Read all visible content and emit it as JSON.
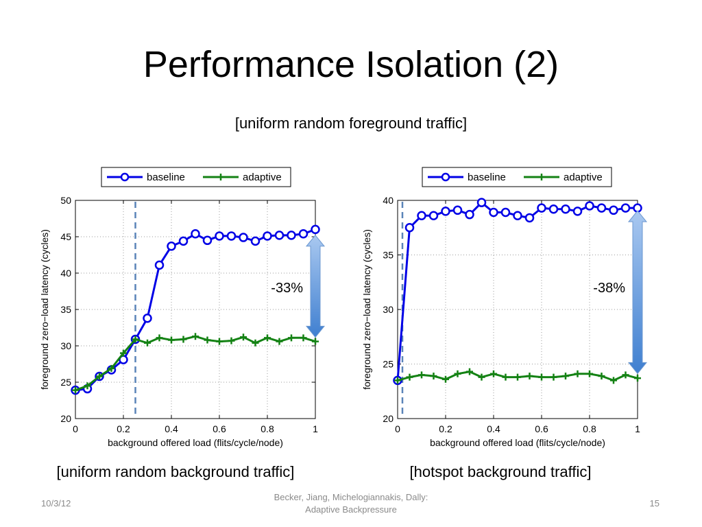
{
  "slide": {
    "title": "Performance Isolation (2)",
    "subtitle": "[uniform random foreground traffic]",
    "footer_date": "10/3/12",
    "footer_center_line1": "Becker, Jiang, Michelogiannakis, Dally:",
    "footer_center_line2": "Adaptive Backpressure",
    "page_number": "15"
  },
  "colors": {
    "baseline": "#0000e6",
    "adaptive": "#148214",
    "arrow": "#4a88d6",
    "dashed_marker": "#5a84b8",
    "grid": "#9a9a9a"
  },
  "chart_data": [
    {
      "type": "line",
      "caption": "[uniform random background traffic]",
      "xlabel": "background offered load (flits/cycle/node)",
      "ylabel": "foreground zero−load latency (cycles)",
      "xlim": [
        0,
        1
      ],
      "ylim": [
        20,
        50
      ],
      "xticks": [
        0,
        0.2,
        0.4,
        0.6,
        0.8,
        1
      ],
      "xtick_labels": [
        "0",
        "0.2",
        "0.4",
        "0.6",
        "0.8",
        "1"
      ],
      "yticks": [
        20,
        25,
        30,
        35,
        40,
        45,
        50
      ],
      "ytick_labels": [
        "20",
        "25",
        "30",
        "35",
        "40",
        "45",
        "50"
      ],
      "grid": true,
      "legend_position": "top-center",
      "x": [
        0,
        0.05,
        0.1,
        0.15,
        0.2,
        0.25,
        0.3,
        0.35,
        0.4,
        0.45,
        0.5,
        0.55,
        0.6,
        0.65,
        0.7,
        0.75,
        0.8,
        0.85,
        0.9,
        0.95,
        1.0
      ],
      "series": [
        {
          "name": "baseline",
          "marker": "circle",
          "values": [
            23.9,
            24.1,
            25.8,
            26.7,
            28.1,
            30.9,
            33.8,
            41.1,
            43.7,
            44.4,
            45.4,
            44.5,
            45.1,
            45.1,
            44.9,
            44.4,
            45.1,
            45.2,
            45.2,
            45.4,
            46.0
          ]
        },
        {
          "name": "adaptive",
          "marker": "plus",
          "values": [
            23.9,
            24.5,
            25.8,
            26.9,
            29.0,
            30.9,
            30.4,
            31.1,
            30.8,
            30.9,
            31.3,
            30.8,
            30.6,
            30.7,
            31.2,
            30.4,
            31.1,
            30.6,
            31.1,
            31.1,
            30.6
          ]
        }
      ],
      "vline_x": 0.25,
      "annotation": {
        "text": "-33%",
        "arrow_from": 45.4,
        "arrow_to": 31.0
      }
    },
    {
      "type": "line",
      "caption": "[hotspot background traffic]",
      "xlabel": "background offered load (flits/cycle/node)",
      "ylabel": "foreground zero−load latency (cycles)",
      "xlim": [
        0,
        1
      ],
      "ylim": [
        20,
        40
      ],
      "xticks": [
        0,
        0.2,
        0.4,
        0.6,
        0.8,
        1
      ],
      "xtick_labels": [
        "0",
        "0.2",
        "0.4",
        "0.6",
        "0.8",
        "1"
      ],
      "yticks": [
        20,
        25,
        30,
        35,
        40
      ],
      "ytick_labels": [
        "20",
        "25",
        "30",
        "35",
        "40"
      ],
      "grid": true,
      "legend_position": "top-center",
      "x": [
        0,
        0.05,
        0.1,
        0.15,
        0.2,
        0.25,
        0.3,
        0.35,
        0.4,
        0.45,
        0.5,
        0.55,
        0.6,
        0.65,
        0.7,
        0.75,
        0.8,
        0.85,
        0.9,
        0.95,
        1.0
      ],
      "series": [
        {
          "name": "baseline",
          "marker": "circle",
          "values": [
            23.5,
            37.5,
            38.6,
            38.6,
            39.0,
            39.1,
            38.7,
            39.8,
            38.9,
            38.9,
            38.6,
            38.4,
            39.3,
            39.2,
            39.2,
            39.0,
            39.5,
            39.3,
            39.1,
            39.3,
            39.3
          ]
        },
        {
          "name": "adaptive",
          "marker": "plus",
          "values": [
            23.5,
            23.8,
            24.0,
            23.9,
            23.6,
            24.1,
            24.3,
            23.8,
            24.1,
            23.8,
            23.8,
            23.9,
            23.8,
            23.8,
            23.9,
            24.1,
            24.1,
            23.9,
            23.5,
            24.0,
            23.7
          ]
        }
      ],
      "vline_x": 0.02,
      "annotation": {
        "text": "-38%",
        "arrow_from": 39.3,
        "arrow_to": 24.0
      }
    }
  ]
}
